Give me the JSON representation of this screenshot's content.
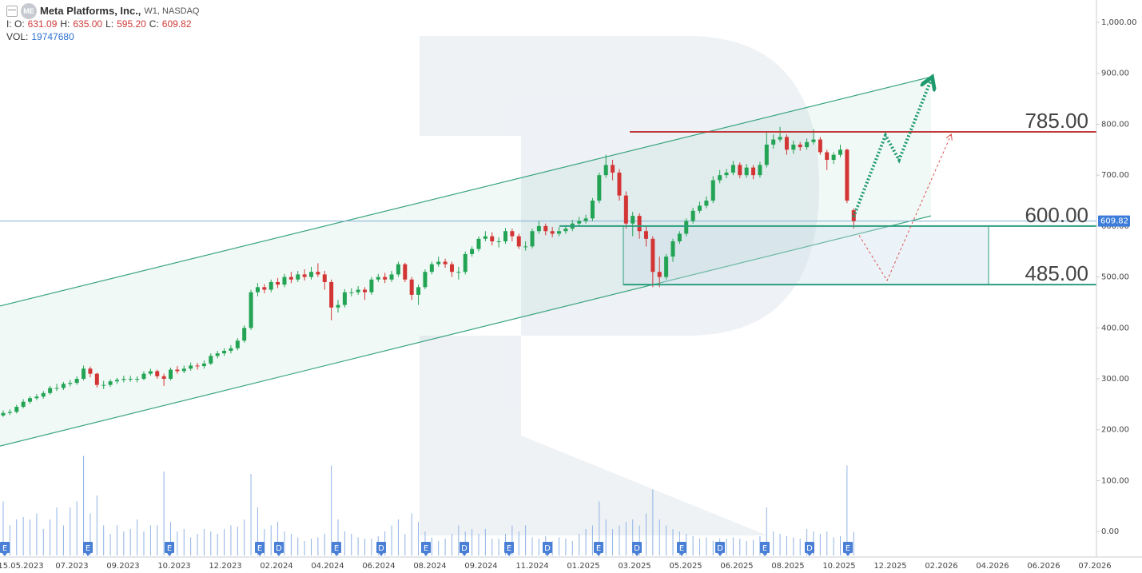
{
  "header": {
    "symbol_icon": "ME",
    "title": "Meta Platforms, Inc.,",
    "interval": "W1, NASDAQ",
    "ohlc": [
      {
        "label": "I: O:",
        "value": "631.09"
      },
      {
        "label": "H:",
        "value": "635.00"
      },
      {
        "label": "L:",
        "value": "595.20"
      },
      {
        "label": "C:",
        "value": "609.82"
      }
    ],
    "volume": {
      "label": "VOL:",
      "value": "19747680"
    }
  },
  "chart_data": {
    "type": "candlestick",
    "candles": {
      "open": [
        228,
        233,
        235,
        245,
        255,
        262,
        265,
        272,
        282,
        282,
        290,
        292,
        300,
        320,
        310,
        288,
        288,
        295,
        298,
        300,
        300,
        300,
        310,
        315,
        305,
        300,
        318,
        315,
        320,
        326,
        325,
        330,
        345,
        350,
        355,
        360,
        375,
        400,
        470,
        480,
        475,
        490,
        485,
        500,
        495,
        505,
        500,
        510,
        505,
        490,
        440,
        445,
        470,
        470,
        475,
        470,
        495,
        500,
        495,
        505,
        525,
        495,
        465,
        480,
        510,
        525,
        530,
        525,
        510,
        510,
        545,
        555,
        575,
        580,
        570,
        570,
        590,
        580,
        560,
        560,
        590,
        600,
        590,
        585,
        590,
        595,
        605,
        610,
        615,
        650,
        700,
        720,
        705,
        660,
        605,
        620,
        590,
        575,
        510,
        500,
        540,
        570,
        585,
        610,
        630,
        640,
        650,
        690,
        700,
        705,
        720,
        700,
        715,
        700,
        720,
        760,
        770,
        775,
        750,
        760,
        755,
        765,
        770,
        745,
        730,
        740,
        750,
        631.09
      ],
      "high": [
        238,
        240,
        249,
        260,
        266,
        270,
        276,
        286,
        290,
        294,
        298,
        305,
        326,
        324,
        312,
        296,
        299,
        302,
        306,
        306,
        305,
        315,
        320,
        318,
        310,
        322,
        325,
        326,
        332,
        331,
        336,
        350,
        355,
        360,
        366,
        380,
        405,
        475,
        488,
        486,
        495,
        498,
        506,
        510,
        512,
        515,
        520,
        527,
        512,
        495,
        455,
        476,
        478,
        482,
        480,
        500,
        506,
        508,
        512,
        530,
        528,
        500,
        485,
        515,
        530,
        540,
        536,
        530,
        520,
        550,
        560,
        580,
        590,
        588,
        578,
        596,
        595,
        585,
        570,
        595,
        610,
        605,
        598,
        598,
        602,
        612,
        618,
        622,
        655,
        705,
        740,
        730,
        712,
        668,
        628,
        625,
        600,
        580,
        540,
        545,
        575,
        590,
        615,
        636,
        648,
        658,
        698,
        710,
        712,
        728,
        725,
        722,
        720,
        726,
        785,
        780,
        795,
        780,
        768,
        765,
        772,
        790,
        775,
        750,
        745,
        760,
        752,
        635
      ],
      "low": [
        225,
        229,
        232,
        242,
        251,
        258,
        261,
        269,
        276,
        278,
        285,
        288,
        297,
        303,
        283,
        280,
        284,
        290,
        293,
        294,
        293,
        297,
        306,
        300,
        286,
        297,
        310,
        311,
        316,
        318,
        320,
        327,
        340,
        345,
        350,
        356,
        371,
        396,
        462,
        468,
        470,
        478,
        480,
        488,
        490,
        493,
        495,
        500,
        475,
        415,
        430,
        440,
        462,
        465,
        455,
        465,
        490,
        488,
        490,
        500,
        490,
        455,
        445,
        476,
        505,
        520,
        518,
        500,
        495,
        505,
        540,
        550,
        570,
        562,
        558,
        565,
        570,
        555,
        552,
        556,
        585,
        582,
        578,
        580,
        585,
        590,
        600,
        605,
        610,
        645,
        695,
        690,
        650,
        595,
        580,
        575,
        560,
        480,
        480,
        495,
        530,
        565,
        580,
        605,
        625,
        635,
        645,
        684,
        694,
        700,
        694,
        695,
        692,
        695,
        715,
        752,
        765,
        740,
        742,
        748,
        750,
        760,
        740,
        710,
        722,
        735,
        645,
        595.2
      ],
      "close": [
        233,
        235,
        245,
        255,
        262,
        265,
        272,
        282,
        282,
        290,
        292,
        300,
        320,
        310,
        288,
        288,
        295,
        298,
        300,
        300,
        300,
        310,
        315,
        305,
        300,
        318,
        315,
        320,
        326,
        325,
        330,
        345,
        350,
        355,
        360,
        375,
        400,
        470,
        480,
        475,
        490,
        485,
        500,
        495,
        505,
        500,
        510,
        505,
        490,
        440,
        445,
        470,
        470,
        475,
        470,
        495,
        500,
        495,
        505,
        525,
        495,
        465,
        480,
        510,
        525,
        530,
        525,
        510,
        510,
        545,
        555,
        575,
        580,
        570,
        570,
        590,
        580,
        560,
        560,
        590,
        600,
        590,
        585,
        590,
        595,
        605,
        610,
        615,
        650,
        700,
        720,
        705,
        660,
        605,
        620,
        590,
        575,
        510,
        500,
        540,
        570,
        585,
        610,
        630,
        640,
        650,
        690,
        700,
        705,
        720,
        700,
        715,
        700,
        720,
        760,
        770,
        775,
        750,
        760,
        755,
        765,
        770,
        745,
        730,
        740,
        750,
        650,
        609.82
      ],
      "volume": [
        45000000.0,
        25000000.0,
        30000000.0,
        32000000.0,
        30000000.0,
        35000000.0,
        22000000.0,
        30000000.0,
        40000000.0,
        25000000.0,
        40000000.0,
        45000000.0,
        83000000.0,
        35000000.0,
        50000000.0,
        25000000.0,
        18000000.0,
        25000000.0,
        20000000.0,
        22000000.0,
        30000000.0,
        20000000.0,
        25000000.0,
        25000000.0,
        70000000.0,
        28000000.0,
        20000000.0,
        22000000.0,
        15000000.0,
        18000000.0,
        22000000.0,
        20000000.0,
        18000000.0,
        22000000.0,
        25000000.0,
        24000000.0,
        30000000.0,
        68000000.0,
        40000000.0,
        22000000.0,
        25000000.0,
        28000000.0,
        20000000.0,
        18000000.0,
        15000000.0,
        12000000.0,
        14000000.0,
        15000000.0,
        18000000.0,
        75000000.0,
        30000000.0,
        20000000.0,
        18000000.0,
        15000000.0,
        14000000.0,
        14000000.0,
        16000000.0,
        20000000.0,
        25000000.0,
        30000000.0,
        18000000.0,
        35000000.0,
        28000000.0,
        20000000.0,
        15000000.0,
        12000000.0,
        14000000.0,
        18000000.0,
        25000000.0,
        20000000.0,
        22000000.0,
        18000000.0,
        22000000.0,
        14000000.0,
        14000000.0,
        18000000.0,
        25000000.0,
        20000000.0,
        25000000.0,
        15000000.0,
        14000000.0,
        16000000.0,
        12000000.0,
        15000000.0,
        14000000.0,
        12000000.0,
        18000000.0,
        22000000.0,
        25000000.0,
        45000000.0,
        30000000.0,
        22000000.0,
        25000000.0,
        28000000.0,
        30000000.0,
        25000000.0,
        35000000.0,
        55000000.0,
        30000000.0,
        25000000.0,
        22000000.0,
        20000000.0,
        18000000.0,
        16000000.0,
        14000000.0,
        15000000.0,
        12000000.0,
        14000000.0,
        14000000.0,
        15000000.0,
        14000000.0,
        12000000.0,
        13000000.0,
        16000000.0,
        40000000.0,
        20000000.0,
        18000000.0,
        16000000.0,
        15000000.0,
        14000000.0,
        22000000.0,
        20000000.0,
        18000000.0,
        20000000.0,
        15000000.0,
        16000000.0,
        75000000.0,
        19747680
      ],
      "up_color": "#23a455",
      "down_color": "#d33535",
      "volume_color": "#8fb2e6"
    },
    "xtick_labels": [
      "15.05.2023",
      "07.2023",
      "09.2023",
      "10.2023",
      "12.2023",
      "02.2024",
      "04.2024",
      "06.2024",
      "08.2024",
      "09.2024",
      "11.2024",
      "01.2025",
      "03.2025",
      "05.2025",
      "06.2025",
      "08.2025",
      "10.2025",
      "12.2025",
      "02.2026",
      "04.2026",
      "06.2026",
      "07.2026"
    ],
    "ylim": [
      -50,
      1044
    ],
    "yticks": [
      {
        "value": 1000,
        "label": "1,000.00"
      },
      {
        "value": 900,
        "label": "900.00"
      },
      {
        "value": 800,
        "label": "800.00"
      },
      {
        "value": 700,
        "label": "700.00"
      },
      {
        "value": 600,
        "label": "600.00"
      },
      {
        "value": 500,
        "label": "500.00"
      },
      {
        "value": 400,
        "label": "400.00"
      },
      {
        "value": 300,
        "label": "300.00"
      },
      {
        "value": 200,
        "label": "200.00"
      },
      {
        "value": 100,
        "label": "100.00"
      },
      {
        "value": 0,
        "label": "0.00"
      }
    ],
    "price_line_color": "#7fb0d8",
    "levels": [
      {
        "value": 785,
        "label": "785.00",
        "color": "#c0393b"
      },
      {
        "value": 600,
        "label": "600.00",
        "color": "#2a9d7f"
      },
      {
        "value": 485,
        "label": "485.00",
        "color": "#2a9d7f"
      }
    ],
    "channel": {
      "upper": [
        443,
        893
      ],
      "lower": [
        168,
        620
      ],
      "color": "#3aa57f"
    },
    "forecast": {
      "primary": {
        "values": [
          618,
          778,
          730,
          887
        ],
        "color": "#1f9a6e"
      },
      "alternative": {
        "values": [
          582,
          493,
          779
        ],
        "color": "#d9534f"
      }
    },
    "events": [
      "E",
      "E",
      "E",
      "E",
      "D",
      "E",
      "D",
      "E",
      "D",
      "E",
      "D",
      "E",
      "D",
      "E",
      "D",
      "E",
      "D",
      "E"
    ]
  }
}
